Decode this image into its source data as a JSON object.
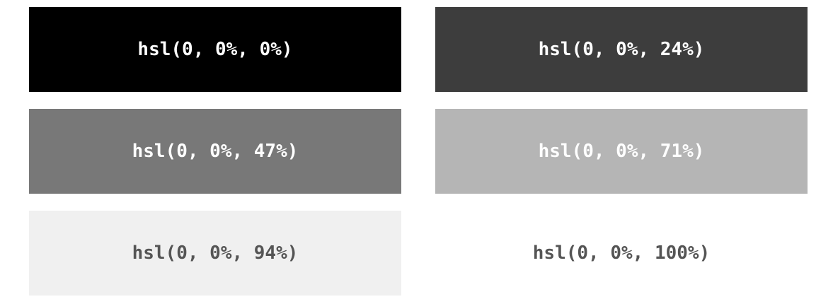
{
  "swatches": [
    {
      "label": "hsl(0, 0%, 0%)",
      "bg": "#000000",
      "fg": "#ffffff"
    },
    {
      "label": "hsl(0, 0%, 24%)",
      "bg": "#3d3d3d",
      "fg": "#ffffff"
    },
    {
      "label": "hsl(0, 0%, 47%)",
      "bg": "#787878",
      "fg": "#ffffff"
    },
    {
      "label": "hsl(0, 0%, 71%)",
      "bg": "#b5b5b5",
      "fg": "#ffffff"
    },
    {
      "label": "hsl(0, 0%, 94%)",
      "bg": "#f0f0f0",
      "fg": "#555555"
    },
    {
      "label": "hsl(0, 0%, 100%)",
      "bg": "#ffffff",
      "fg": "#555555"
    }
  ]
}
